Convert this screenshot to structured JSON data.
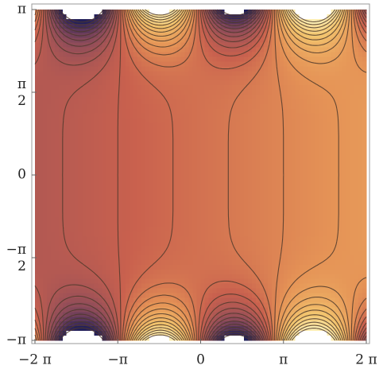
{
  "chart_data": {
    "type": "contour",
    "xlim": [
      -6.283185307,
      6.283185307
    ],
    "ylim": [
      -3.141592654,
      3.141592654
    ],
    "xticks": [
      {
        "value": -6.283185307,
        "label": "−2 π"
      },
      {
        "value": -3.141592654,
        "label": "−π"
      },
      0,
      {
        "value": 3.141592654,
        "label": "π"
      },
      {
        "value": 6.283185307,
        "label": "2 π"
      }
    ],
    "yticks": [
      {
        "value": -3.141592654,
        "label": "−π"
      },
      {
        "value": -1.570796327,
        "label": "−π/2"
      },
      0,
      {
        "value": 1.570796327,
        "label": "π/2"
      },
      {
        "value": 3.141592654,
        "label": "π"
      }
    ]
  }
}
